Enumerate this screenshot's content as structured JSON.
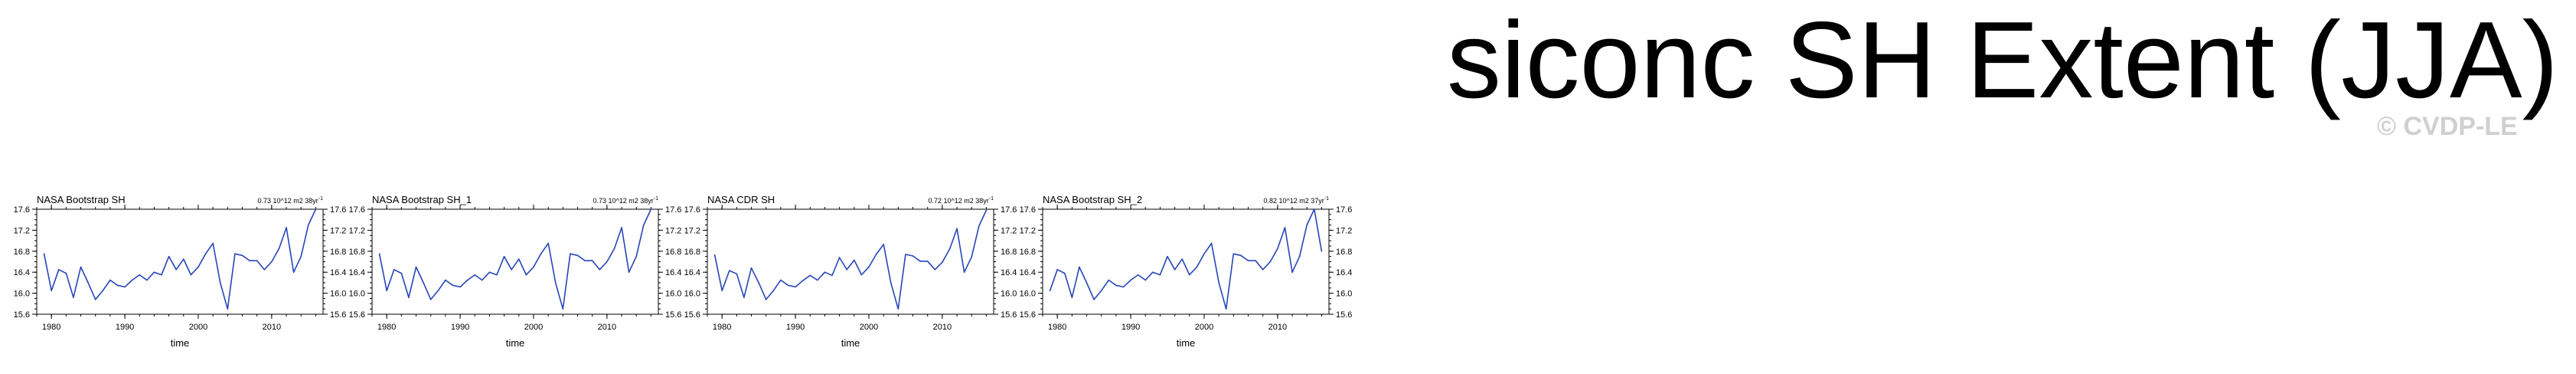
{
  "page": {
    "title": "siconc SH Extent (JJA)",
    "watermark": "© CVDP-LE"
  },
  "colors": {
    "line": "#2746b8",
    "axis": "#000000",
    "watermark": "#d0d0d0"
  },
  "chart_data": [
    {
      "type": "line",
      "title": "NASA Bootstrap SH",
      "trend": "0.73 10^12 m2 38yr",
      "trend_exp": "-1",
      "xlabel": "time",
      "ylabel": "",
      "xlim": [
        1978,
        2017
      ],
      "ylim": [
        15.6,
        17.6
      ],
      "xticks": [
        1980,
        1990,
        2000,
        2010
      ],
      "yticks": [
        "15.6",
        "16.0",
        "16.4",
        "16.8",
        "17.2",
        "17.6"
      ],
      "x": [
        1979,
        1980,
        1981,
        1982,
        1983,
        1984,
        1985,
        1986,
        1987,
        1988,
        1989,
        1990,
        1991,
        1992,
        1993,
        1994,
        1995,
        1996,
        1997,
        1998,
        1999,
        2000,
        2001,
        2002,
        2003,
        2004,
        2005,
        2006,
        2007,
        2008,
        2009,
        2010,
        2011,
        2012,
        2013,
        2014,
        2015,
        2016
      ],
      "values": [
        16.75,
        16.05,
        16.45,
        16.38,
        15.92,
        16.5,
        16.2,
        15.88,
        16.05,
        16.25,
        16.15,
        16.12,
        16.25,
        16.35,
        16.25,
        16.4,
        16.35,
        16.7,
        16.45,
        16.65,
        16.35,
        16.5,
        16.75,
        16.95,
        16.2,
        15.7,
        16.75,
        16.72,
        16.62,
        16.62,
        16.45,
        16.6,
        16.85,
        17.25,
        16.4,
        16.7,
        17.3,
        17.6
      ]
    },
    {
      "type": "line",
      "title": "NASA Bootstrap SH_1",
      "trend": "0.73 10^12 m2 38yr",
      "trend_exp": "-1",
      "xlabel": "time",
      "ylabel": "",
      "xlim": [
        1978,
        2017
      ],
      "ylim": [
        15.6,
        17.6
      ],
      "xticks": [
        1980,
        1990,
        2000,
        2010
      ],
      "yticks": [
        "15.6",
        "16.0",
        "16.4",
        "16.8",
        "17.2",
        "17.6"
      ],
      "x": [
        1979,
        1980,
        1981,
        1982,
        1983,
        1984,
        1985,
        1986,
        1987,
        1988,
        1989,
        1990,
        1991,
        1992,
        1993,
        1994,
        1995,
        1996,
        1997,
        1998,
        1999,
        2000,
        2001,
        2002,
        2003,
        2004,
        2005,
        2006,
        2007,
        2008,
        2009,
        2010,
        2011,
        2012,
        2013,
        2014,
        2015,
        2016
      ],
      "values": [
        16.75,
        16.05,
        16.45,
        16.38,
        15.92,
        16.5,
        16.2,
        15.88,
        16.05,
        16.25,
        16.15,
        16.12,
        16.25,
        16.35,
        16.25,
        16.4,
        16.35,
        16.7,
        16.45,
        16.65,
        16.35,
        16.5,
        16.75,
        16.95,
        16.2,
        15.7,
        16.75,
        16.72,
        16.62,
        16.62,
        16.45,
        16.6,
        16.85,
        17.25,
        16.4,
        16.7,
        17.3,
        17.6
      ]
    },
    {
      "type": "line",
      "title": "NASA CDR SH",
      "trend": "0.72 10^12 m2 38yr",
      "trend_exp": "-1",
      "xlabel": "time",
      "ylabel": "",
      "xlim": [
        1978,
        2017
      ],
      "ylim": [
        15.6,
        17.6
      ],
      "xticks": [
        1980,
        1990,
        2000,
        2010
      ],
      "yticks": [
        "15.6",
        "16.0",
        "16.4",
        "16.8",
        "17.2",
        "17.6"
      ],
      "x": [
        1979,
        1980,
        1981,
        1982,
        1983,
        1984,
        1985,
        1986,
        1987,
        1988,
        1989,
        1990,
        1991,
        1992,
        1993,
        1994,
        1995,
        1996,
        1997,
        1998,
        1999,
        2000,
        2001,
        2002,
        2003,
        2004,
        2005,
        2006,
        2007,
        2008,
        2009,
        2010,
        2011,
        2012,
        2013,
        2014,
        2015,
        2016
      ],
      "values": [
        16.73,
        16.05,
        16.43,
        16.37,
        15.92,
        16.48,
        16.2,
        15.88,
        16.05,
        16.25,
        16.15,
        16.12,
        16.24,
        16.34,
        16.25,
        16.4,
        16.34,
        16.68,
        16.45,
        16.63,
        16.35,
        16.5,
        16.74,
        16.93,
        16.2,
        15.7,
        16.74,
        16.71,
        16.61,
        16.61,
        16.45,
        16.59,
        16.84,
        17.23,
        16.4,
        16.69,
        17.28,
        17.58
      ]
    },
    {
      "type": "line",
      "title": "NASA Bootstrap SH_2",
      "trend": "0.82 10^12 m2 37yr",
      "trend_exp": "-1",
      "xlabel": "time",
      "ylabel": "",
      "xlim": [
        1978,
        2017
      ],
      "ylim": [
        15.6,
        17.6
      ],
      "xticks": [
        1980,
        1990,
        2000,
        2010
      ],
      "yticks": [
        "15.6",
        "16.0",
        "16.4",
        "16.8",
        "17.2",
        "17.6"
      ],
      "x": [
        1979,
        1980,
        1981,
        1982,
        1983,
        1984,
        1985,
        1986,
        1987,
        1988,
        1989,
        1990,
        1991,
        1992,
        1993,
        1994,
        1995,
        1996,
        1997,
        1998,
        1999,
        2000,
        2001,
        2002,
        2003,
        2004,
        2005,
        2006,
        2007,
        2008,
        2009,
        2010,
        2011,
        2012,
        2013,
        2014,
        2015,
        2016
      ],
      "values": [
        16.05,
        16.45,
        16.38,
        15.92,
        16.5,
        16.2,
        15.88,
        16.05,
        16.25,
        16.15,
        16.12,
        16.25,
        16.35,
        16.25,
        16.4,
        16.35,
        16.7,
        16.45,
        16.65,
        16.35,
        16.5,
        16.75,
        16.95,
        16.2,
        15.7,
        16.75,
        16.72,
        16.62,
        16.62,
        16.45,
        16.6,
        16.85,
        17.25,
        16.4,
        16.7,
        17.3,
        17.6,
        16.8
      ]
    }
  ]
}
